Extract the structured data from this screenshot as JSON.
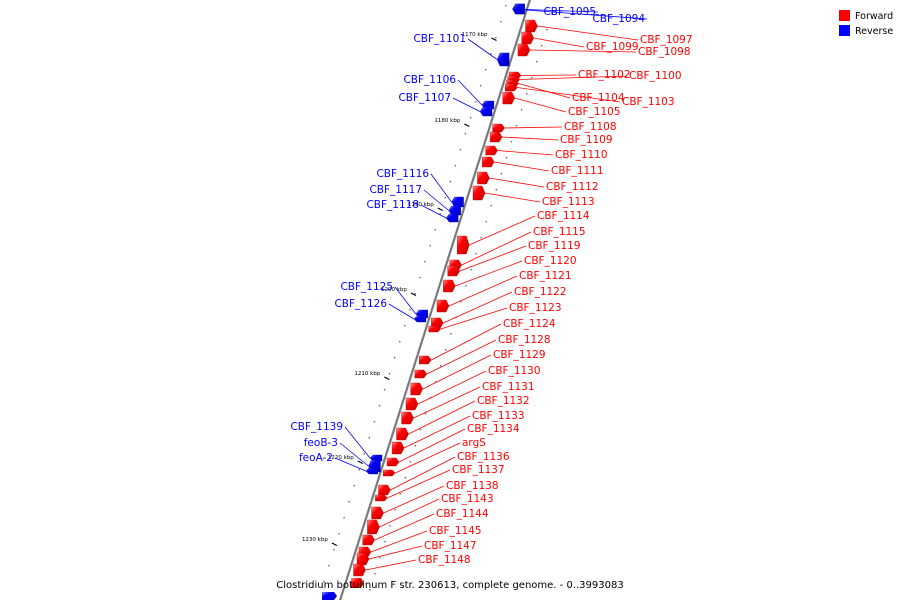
{
  "caption": "Clostridium botulinum F str. 230613, complete genome. - 0..3993083",
  "legend": [
    {
      "label": "Forward",
      "color": "#ff0000"
    },
    {
      "label": "Reverse",
      "color": "#0000ff"
    }
  ],
  "colors": {
    "forward": "#ff0000",
    "reverse": "#0000ff",
    "backbone": "#808080"
  },
  "ticks": [
    "1170 kbp",
    "1180 kbp",
    "1190 kbp",
    "1200 kbp",
    "1210 kbp",
    "1220 kbp",
    "1230 kbp"
  ],
  "genes": [
    {
      "label": "CBF_1095",
      "strand": "reverse"
    },
    {
      "label": "CBF_1094",
      "strand": "reverse"
    },
    {
      "label": "CBF_1097",
      "strand": "forward"
    },
    {
      "label": "CBF_1099",
      "strand": "forward"
    },
    {
      "label": "CBF_1098",
      "strand": "forward"
    },
    {
      "label": "CBF_1101",
      "strand": "reverse"
    },
    {
      "label": "CBF_1102",
      "strand": "forward"
    },
    {
      "label": "CBF_1100",
      "strand": "forward"
    },
    {
      "label": "CBF_1106",
      "strand": "reverse"
    },
    {
      "label": "CBF_1104",
      "strand": "forward"
    },
    {
      "label": "CBF_1103",
      "strand": "forward"
    },
    {
      "label": "CBF_1107",
      "strand": "reverse"
    },
    {
      "label": "CBF_1105",
      "strand": "forward"
    },
    {
      "label": "CBF_1108",
      "strand": "forward"
    },
    {
      "label": "CBF_1109",
      "strand": "forward"
    },
    {
      "label": "CBF_1110",
      "strand": "forward"
    },
    {
      "label": "CBF_1111",
      "strand": "forward"
    },
    {
      "label": "CBF_1116",
      "strand": "reverse"
    },
    {
      "label": "CBF_1112",
      "strand": "forward"
    },
    {
      "label": "CBF_1117",
      "strand": "reverse"
    },
    {
      "label": "CBF_1113",
      "strand": "forward"
    },
    {
      "label": "CBF_1118",
      "strand": "reverse"
    },
    {
      "label": "CBF_1114",
      "strand": "forward"
    },
    {
      "label": "CBF_1115",
      "strand": "forward"
    },
    {
      "label": "CBF_1119",
      "strand": "forward"
    },
    {
      "label": "CBF_1120",
      "strand": "forward"
    },
    {
      "label": "CBF_1121",
      "strand": "forward"
    },
    {
      "label": "CBF_1125",
      "strand": "reverse"
    },
    {
      "label": "CBF_1122",
      "strand": "forward"
    },
    {
      "label": "CBF_1126",
      "strand": "reverse"
    },
    {
      "label": "CBF_1123",
      "strand": "forward"
    },
    {
      "label": "CBF_1124",
      "strand": "forward"
    },
    {
      "label": "CBF_1128",
      "strand": "forward"
    },
    {
      "label": "CBF_1129",
      "strand": "forward"
    },
    {
      "label": "CBF_1130",
      "strand": "forward"
    },
    {
      "label": "CBF_1131",
      "strand": "forward"
    },
    {
      "label": "CBF_1132",
      "strand": "forward"
    },
    {
      "label": "CBF_1133",
      "strand": "forward"
    },
    {
      "label": "CBF_1139",
      "strand": "reverse"
    },
    {
      "label": "CBF_1134",
      "strand": "forward"
    },
    {
      "label": "argS",
      "strand": "forward"
    },
    {
      "label": "feoB-3",
      "strand": "reverse"
    },
    {
      "label": "CBF_1136",
      "strand": "forward"
    },
    {
      "label": "feoA-2",
      "strand": "reverse"
    },
    {
      "label": "CBF_1137",
      "strand": "forward"
    },
    {
      "label": "CBF_1138",
      "strand": "forward"
    },
    {
      "label": "CBF_1143",
      "strand": "forward"
    },
    {
      "label": "CBF_1144",
      "strand": "forward"
    },
    {
      "label": "CBF_1145",
      "strand": "forward"
    },
    {
      "label": "CBF_1147",
      "strand": "forward"
    },
    {
      "label": "CBF_1148",
      "strand": "forward"
    }
  ]
}
